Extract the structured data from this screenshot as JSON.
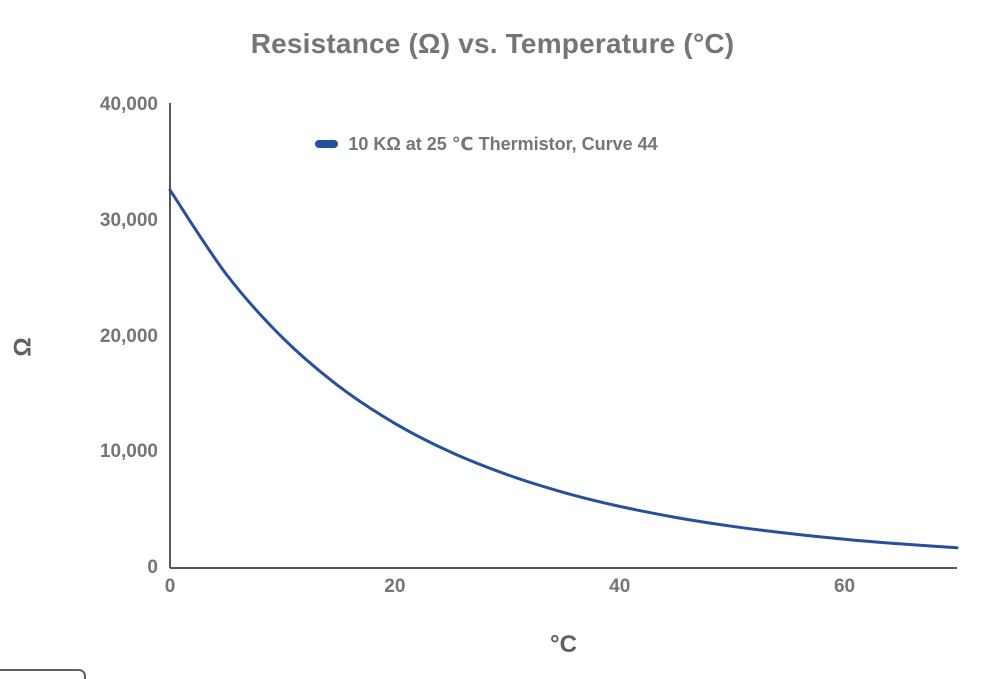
{
  "chart_data": {
    "type": "line",
    "title": "Resistance (Ω) vs. Temperature (°C)",
    "xlabel": "°C",
    "ylabel": "Ω",
    "xlim": [
      0,
      70
    ],
    "ylim": [
      0,
      40000
    ],
    "x_tick_values": [
      0,
      20,
      40,
      60
    ],
    "x_tick_labels": [
      "0",
      "20",
      "40",
      "60"
    ],
    "y_tick_values": [
      0,
      10000,
      20000,
      30000,
      40000
    ],
    "y_tick_labels": [
      "0",
      "10,000",
      "20,000",
      "30,000",
      "40,000"
    ],
    "grid": false,
    "legend_position": "top-center-inside-plot",
    "axis_color": "#565656",
    "text_color": "#757575",
    "series": [
      {
        "name": "10 KΩ at 25 ℃ Thermistor, Curve 44",
        "color": "#26509b",
        "x": [
          0,
          5,
          10,
          15,
          20,
          25,
          30,
          35,
          40,
          45,
          50,
          55,
          60,
          65,
          70
        ],
        "values": [
          32650,
          25395,
          19903,
          15714,
          12493,
          10000,
          8057,
          6530,
          5325,
          4367,
          3601,
          2986,
          2487,
          2082,
          1752
        ]
      }
    ]
  },
  "decorations": {
    "partial_button_outline_color": "#606060"
  }
}
